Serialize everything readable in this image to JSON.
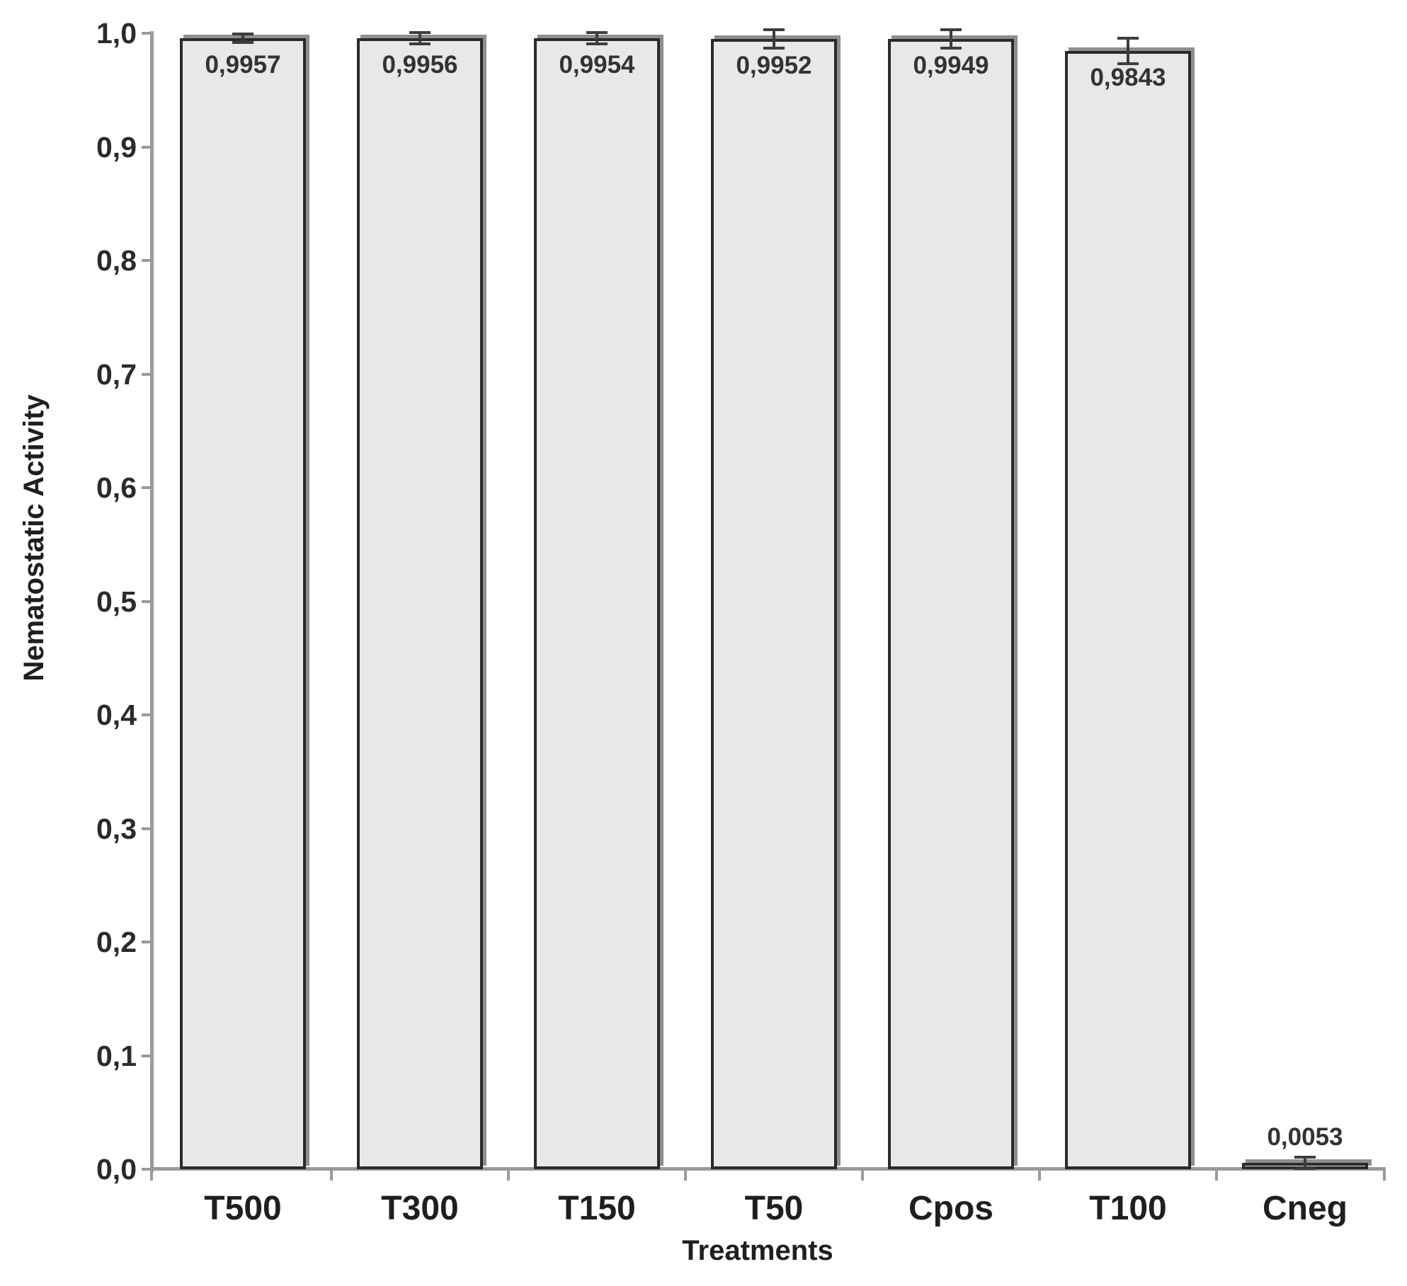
{
  "chart_data": {
    "type": "bar",
    "title": "",
    "xlabel": "Treatments",
    "ylabel": "Nematostatic Activity",
    "categories": [
      "T500",
      "T300",
      "T150",
      "T50",
      "Cpos",
      "T100",
      "Cneg"
    ],
    "values": [
      0.9957,
      0.9956,
      0.9954,
      0.9952,
      0.9949,
      0.9843,
      0.0053
    ],
    "value_labels": [
      "0,9957",
      "0,9956",
      "0,9954",
      "0,9952",
      "0,9949",
      "0,9843",
      "0,0053"
    ],
    "errors": [
      0.004,
      0.005,
      0.005,
      0.008,
      0.008,
      0.011,
      0.005
    ],
    "ylim": [
      0,
      1.0
    ],
    "ytick_step": 0.1,
    "ytick_labels": [
      "0,0",
      "0,1",
      "0,2",
      "0,3",
      "0,4",
      "0,5",
      "0,6",
      "0,7",
      "0,8",
      "0,9",
      "1,0"
    ],
    "decimal_separator": ",",
    "grid": false,
    "legend": null,
    "colors": {
      "bar_fill": "#e8e8e8",
      "bar_border": "#2a2a2a",
      "bar_shadow": "#8f8f8f",
      "axis": "#9a9a9a",
      "error_bar": "#3d3d3d",
      "text": "#2b2b2b"
    }
  }
}
